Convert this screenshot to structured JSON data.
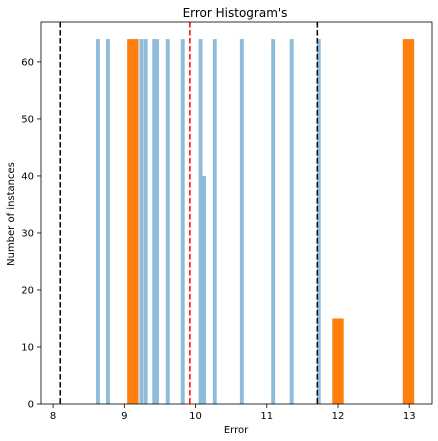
{
  "chart_data": {
    "type": "bar",
    "title": "Error Histogram's",
    "xlabel": "Error",
    "ylabel": "Number of instances",
    "xlim": [
      7.83,
      13.32
    ],
    "ylim": [
      0,
      67
    ],
    "xticks": [
      8,
      9,
      10,
      11,
      12,
      13
    ],
    "yticks": [
      0,
      10,
      20,
      30,
      40,
      50,
      60
    ],
    "grid": false,
    "bar_width": 0.055,
    "series": [
      {
        "color": "#8fbcdb",
        "bars": [
          {
            "x": 8.63,
            "y": 64
          },
          {
            "x": 8.77,
            "y": 64
          },
          {
            "x": 9.08,
            "y": 64
          },
          {
            "x": 9.24,
            "y": 64
          },
          {
            "x": 9.3,
            "y": 64
          },
          {
            "x": 9.42,
            "y": 64
          },
          {
            "x": 9.46,
            "y": 64
          },
          {
            "x": 9.61,
            "y": 64
          },
          {
            "x": 9.82,
            "y": 64
          },
          {
            "x": 10.07,
            "y": 64
          },
          {
            "x": 10.12,
            "y": 40
          },
          {
            "x": 10.27,
            "y": 64
          },
          {
            "x": 10.65,
            "y": 64
          },
          {
            "x": 11.09,
            "y": 64
          },
          {
            "x": 11.35,
            "y": 64
          },
          {
            "x": 11.73,
            "y": 64
          }
        ]
      },
      {
        "color": "#ff7f0e",
        "bar_width": 0.16,
        "bars": [
          {
            "x": 9.12,
            "y": 64
          },
          {
            "x": 12.0,
            "y": 15
          },
          {
            "x": 12.99,
            "y": 64
          }
        ]
      }
    ],
    "vlines": [
      {
        "x": 8.1,
        "color": "#000000",
        "style": "dashed"
      },
      {
        "x": 9.92,
        "color": "#ff0000",
        "style": "dashed"
      },
      {
        "x": 11.71,
        "color": "#000000",
        "style": "dashed"
      }
    ]
  }
}
